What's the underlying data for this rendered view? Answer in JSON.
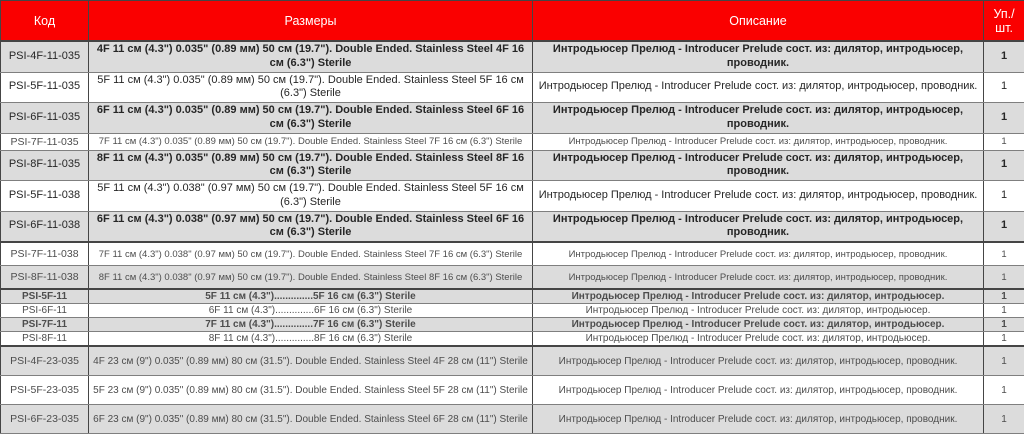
{
  "colors": {
    "header_bg": "#fa0000",
    "header_text": "#ffffff",
    "shaded_row": "#dcdcdc",
    "border": "#454545"
  },
  "table": {
    "columns": [
      {
        "label": "Код"
      },
      {
        "label": "Размеры"
      },
      {
        "label": "Описание"
      },
      {
        "label": "Уп./шт."
      }
    ],
    "rows": [
      {
        "code": "PSI-4F-11-035",
        "size": "4F 11 см (4.3\") 0.035\" (0.89 мм) 50 см (19.7\"). Double Ended. Stainless Steel 4F 16 см (6.3\") Sterile",
        "description": "Интродьюсер Прелюд - Introducer Prelude сост. из: дилятор, интродьюсер, проводник.",
        "qty": "1",
        "shaded": true,
        "bold": true,
        "variant": "v1",
        "thick_top": false
      },
      {
        "code": "PSI-5F-11-035",
        "size": "5F 11 см (4.3\") 0.035\" (0.89 мм) 50 см (19.7\"). Double Ended. Stainless Steel 5F 16 см (6.3\") Sterile",
        "description": "Интродьюсер Прелюд - Introducer Prelude сост. из: дилятор, интродьюсер, проводник.",
        "qty": "1",
        "shaded": false,
        "bold": false,
        "variant": "v1",
        "thick_top": false
      },
      {
        "code": "PSI-6F-11-035",
        "size": "6F 11 см (4.3\") 0.035\" (0.89 мм) 50 см (19.7\"). Double Ended. Stainless Steel 6F 16 см (6.3\") Sterile",
        "description": "Интродьюсер Прелюд - Introducer Prelude сост. из: дилятор, интродьюсер, проводник.",
        "qty": "1",
        "shaded": true,
        "bold": true,
        "variant": "v1",
        "thick_top": false
      },
      {
        "code": "PSI-7F-11-035",
        "size": "7F 11 см (4.3\") 0.035\" (0.89 мм) 50 см (19.7\"). Double Ended. Stainless Steel 7F 16 см (6.3\") Sterile",
        "description": "Интродьюсер Прелюд - Introducer Prelude сост. из: дилятор, интродьюсер, проводник.",
        "qty": "1",
        "shaded": false,
        "bold": false,
        "variant": "v2",
        "thick_top": false
      },
      {
        "code": "PSI-8F-11-035",
        "size": "8F 11 см (4.3\") 0.035\" (0.89 мм) 50 см (19.7\"). Double Ended. Stainless Steel 8F 16 см (6.3\") Sterile",
        "description": "Интродьюсер Прелюд - Introducer Prelude сост. из: дилятор, интродьюсер, проводник.",
        "qty": "1",
        "shaded": true,
        "bold": true,
        "variant": "v1",
        "thick_top": false
      },
      {
        "code": "PSI-5F-11-038",
        "size": "5F 11 см (4.3\") 0.038\" (0.97 мм) 50 см (19.7\"). Double Ended. Stainless Steel 5F 16 см (6.3\") Sterile",
        "description": "Интродьюсер Прелюд - Introducer Prelude сост. из: дилятор, интродьюсер, проводник.",
        "qty": "1",
        "shaded": false,
        "bold": false,
        "variant": "v1",
        "thick_top": false
      },
      {
        "code": "PSI-6F-11-038",
        "size": "6F 11 см (4.3\") 0.038\" (0.97 мм) 50 см (19.7\"). Double Ended. Stainless Steel 6F 16 см (6.3\") Sterile",
        "description": "Интродьюсер Прелюд - Introducer Prelude сост. из: дилятор, интродьюсер, проводник.",
        "qty": "1",
        "shaded": true,
        "bold": true,
        "variant": "v1",
        "thick_top": false
      },
      {
        "code": "PSI-7F-11-038",
        "size": "7F 11 см (4.3\") 0.038\" (0.97 мм) 50 см (19.7\"). Double Ended. Stainless Steel 7F 16 см (6.3\") Sterile",
        "description": "Интродьюсер Прелюд - Introducer Prelude сост. из: дилятор, интродьюсер, проводник.",
        "qty": "1",
        "shaded": false,
        "bold": false,
        "variant": "v3",
        "thick_top": true
      },
      {
        "code": "PSI-8F-11-038",
        "size": "8F 11 см (4.3\") 0.038\" (0.97 мм) 50 см (19.7\"). Double Ended. Stainless Steel 8F 16 см (6.3\") Sterile",
        "description": "Интродьюсер Прелюд - Introducer Prelude сост. из: дилятор, интродьюсер, проводник.",
        "qty": "1",
        "shaded": true,
        "bold": false,
        "variant": "v3",
        "thick_top": false
      },
      {
        "code": "PSI-5F-11",
        "size": "5F 11 см (4.3\")..............5F 16 см (6.3\") Sterile",
        "description": "Интродьюсер Прелюд - Introducer Prelude сост. из: дилятор, интродьюсер.",
        "qty": "1",
        "shaded": true,
        "bold": true,
        "variant": "v4",
        "thick_top": true
      },
      {
        "code": "PSI-6F-11",
        "size": "6F 11 см (4.3\")..............6F 16 см (6.3\") Sterile",
        "description": "Интродьюсер Прелюд - Introducer Prelude сост. из: дилятор, интродьюсер.",
        "qty": "1",
        "shaded": false,
        "bold": false,
        "variant": "v4",
        "thick_top": false
      },
      {
        "code": "PSI-7F-11",
        "size": "7F 11 см (4.3\")..............7F 16 см (6.3\") Sterile",
        "description": "Интродьюсер Прелюд - Introducer Prelude сост. из: дилятор, интродьюсер.",
        "qty": "1",
        "shaded": true,
        "bold": true,
        "variant": "v4",
        "thick_top": false
      },
      {
        "code": "PSI-8F-11",
        "size": "8F 11 см (4.3\")..............8F 16 см (6.3\") Sterile",
        "description": "Интродьюсер Прелюд - Introducer Prelude сост. из: дилятор, интродьюсер.",
        "qty": "1",
        "shaded": false,
        "bold": false,
        "variant": "v4",
        "thick_top": false
      },
      {
        "code": "PSI-4F-23-035",
        "size": "4F 23 см (9\") 0.035\" (0.89 мм) 80 см (31.5\"). Double Ended. Stainless Steel 4F 28 см (11\") Sterile",
        "description": "Интродьюсер Прелюд - Introducer Prelude сост. из: дилятор, интродьюсер, проводник.",
        "qty": "1",
        "shaded": true,
        "bold": false,
        "variant": "v5",
        "thick_top": true
      },
      {
        "code": "PSI-5F-23-035",
        "size": "5F 23 см (9\") 0.035\" (0.89 мм) 80 см (31.5\"). Double Ended. Stainless Steel 5F 28 см (11\") Sterile",
        "description": "Интродьюсер Прелюд - Introducer Prelude сост. из: дилятор, интродьюсер, проводник.",
        "qty": "1",
        "shaded": false,
        "bold": false,
        "variant": "v5",
        "thick_top": false
      },
      {
        "code": "PSI-6F-23-035",
        "size": "6F 23 см (9\") 0.035\" (0.89 мм) 80 см (31.5\"). Double Ended. Stainless Steel 6F 28 см (11\") Sterile",
        "description": "Интродьюсер Прелюд - Introducer Prelude сост. из: дилятор, интродьюсер, проводник.",
        "qty": "1",
        "shaded": true,
        "bold": false,
        "variant": "v5",
        "thick_top": false
      }
    ]
  }
}
